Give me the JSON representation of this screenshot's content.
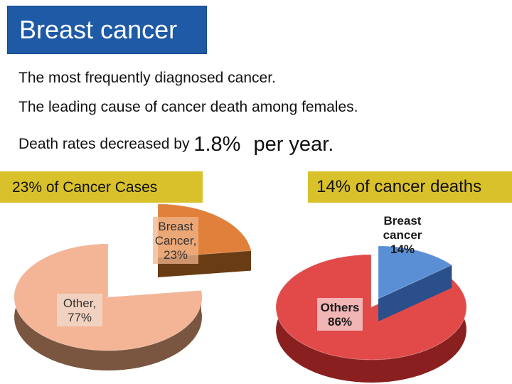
{
  "title": "Breast cancer",
  "bullets": {
    "line1": "The most frequently diagnosed cancer.",
    "line2": "The leading cause of cancer death among females.",
    "line3_prefix": "Death rates decreased by",
    "line3_value": "1.8%",
    "line3_suffix": "per year."
  },
  "chart_data": [
    {
      "type": "pie",
      "title": "23% of Cancer Cases",
      "categories": [
        "Breast Cancer",
        "Other"
      ],
      "values": [
        23,
        77
      ],
      "labels": [
        {
          "lines": [
            "Breast",
            "Cancer,",
            "23%"
          ]
        },
        {
          "lines": [
            "Other,",
            "77%"
          ]
        }
      ],
      "colors": {
        "highlight": "#e0803a",
        "highlight_side": "#6a3c14",
        "other": "#f4b496",
        "other_side": "#7a5640"
      }
    },
    {
      "type": "pie",
      "title": "14% of cancer deaths",
      "categories": [
        "Breast cancer",
        "Others"
      ],
      "values": [
        14,
        86
      ],
      "labels": [
        {
          "lines": [
            "Breast",
            "cancer",
            "14%"
          ]
        },
        {
          "lines": [
            "Others",
            "86%"
          ]
        }
      ],
      "colors": {
        "highlight": "#5a8fd6",
        "highlight_side": "#2a4f8a",
        "other": "#e24a4a",
        "other_side": "#8a1f1f"
      }
    }
  ]
}
